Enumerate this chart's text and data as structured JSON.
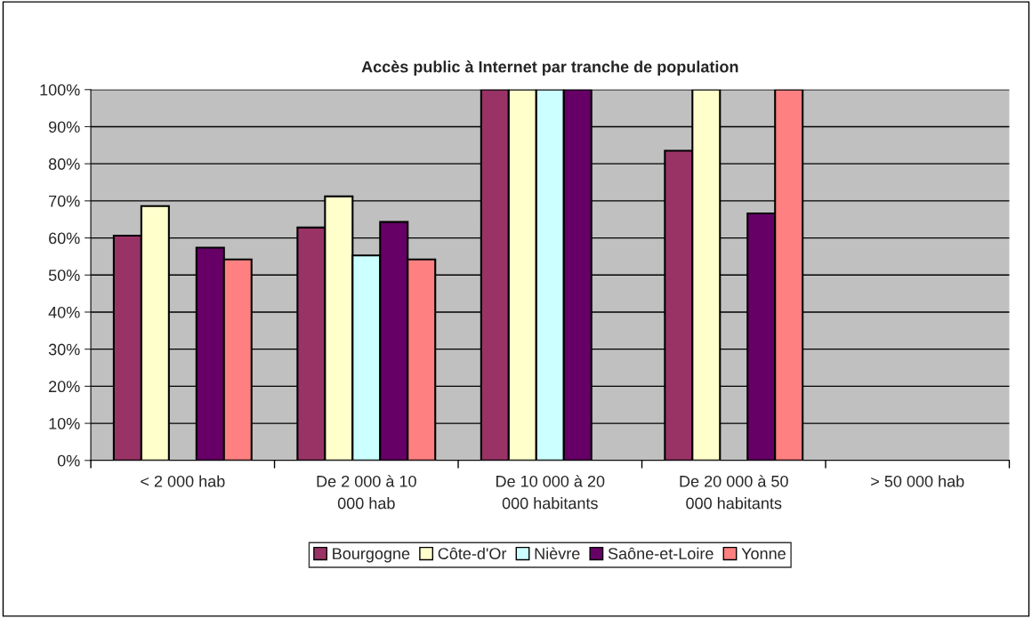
{
  "chart_data": {
    "type": "bar",
    "title": "Accès public à Internet par tranche de population",
    "categories": [
      "< 2 000 hab",
      "De 2 000 à 10 000 hab",
      "De 10 000 à 20 000 habitants",
      "De 20 000 à 50 000 habitants",
      "> 50 000 hab"
    ],
    "series": [
      {
        "name": "Bourgogne",
        "color": "#993366",
        "values": [
          60.6,
          62.8,
          100,
          83.5,
          null
        ]
      },
      {
        "name": "Côte-d'Or",
        "color": "#ffffcc",
        "values": [
          68.6,
          71.2,
          100,
          100,
          null
        ]
      },
      {
        "name": "Nièvre",
        "color": "#ccffff",
        "values": [
          null,
          55.3,
          100,
          null,
          null
        ]
      },
      {
        "name": "Saône-et-Loire",
        "color": "#660066",
        "values": [
          57.4,
          64.3,
          100,
          66.6,
          null
        ]
      },
      {
        "name": "Yonne",
        "color": "#ff8080",
        "values": [
          54.2,
          54.2,
          null,
          100,
          null
        ]
      }
    ],
    "ylim": [
      0,
      100
    ],
    "yticks": [
      {
        "value": 0,
        "label": "0%"
      },
      {
        "value": 10,
        "label": "10%"
      },
      {
        "value": 20,
        "label": "20%"
      },
      {
        "value": 30,
        "label": "30%"
      },
      {
        "value": 40,
        "label": "40%"
      },
      {
        "value": 50,
        "label": "50%"
      },
      {
        "value": 60,
        "label": "60%"
      },
      {
        "value": 70,
        "label": "70%"
      },
      {
        "value": 80,
        "label": "80%"
      },
      {
        "value": 90,
        "label": "90%"
      },
      {
        "value": 100,
        "label": "100%"
      }
    ],
    "grid": "y",
    "legend": "bottom"
  }
}
